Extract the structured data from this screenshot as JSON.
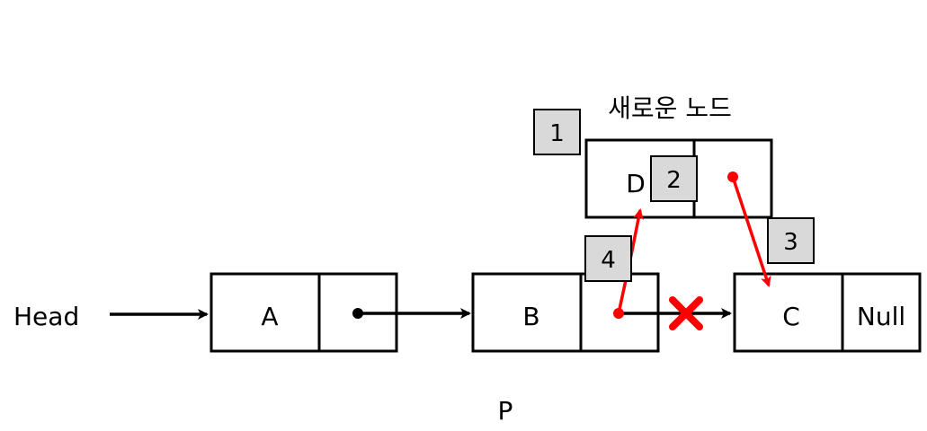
{
  "head_label": "Head",
  "pointer_label": "P",
  "new_node_caption": "새로운 노드",
  "nodes": {
    "a": {
      "value": "A"
    },
    "b": {
      "value": "B"
    },
    "c": {
      "value": "C",
      "next": "Null"
    },
    "d": {
      "value": "D"
    }
  },
  "steps": [
    "1",
    "2",
    "3",
    "4"
  ],
  "colors": {
    "line": "#000000",
    "new_link": "#ff0000",
    "removed_mark": "#ff0000",
    "step_badge_fill": "#d9d9d9",
    "step_badge_border": "#000000"
  }
}
